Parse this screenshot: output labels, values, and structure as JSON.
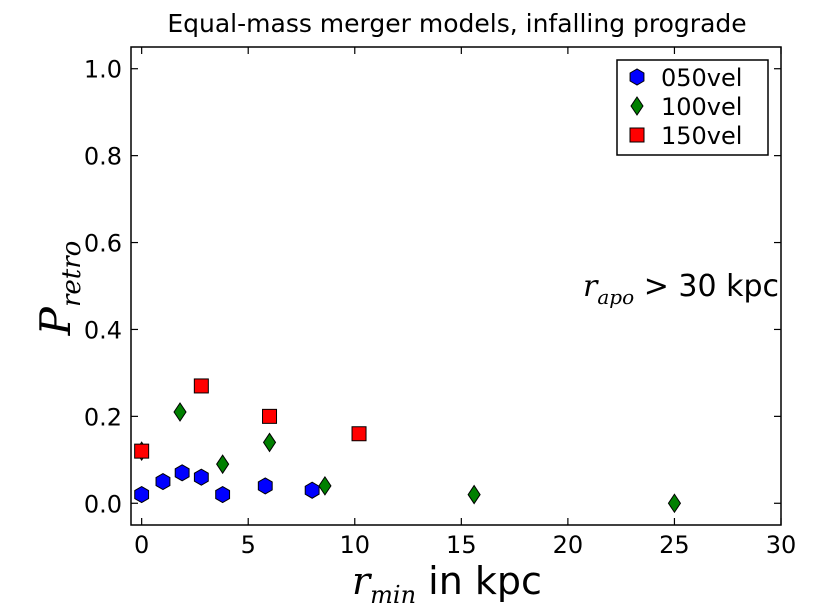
{
  "chart_data": {
    "type": "scatter",
    "title": "Equal-mass merger models, infalling prograde",
    "xlabel": {
      "var": "r",
      "sub": "min",
      "suffix": " in kpc"
    },
    "ylabel": {
      "var": "P",
      "sub": "retro"
    },
    "xlim": [
      -0.5,
      30
    ],
    "ylim": [
      -0.05,
      1.05
    ],
    "xticks": [
      0,
      5,
      10,
      15,
      20,
      25,
      30
    ],
    "xtick_labels": [
      "0",
      "5",
      "10",
      "15",
      "20",
      "25",
      "30"
    ],
    "yticks": [
      0.0,
      0.2,
      0.4,
      0.6,
      0.8,
      1.0
    ],
    "ytick_labels": [
      "0.0",
      "0.2",
      "0.4",
      "0.6",
      "0.8",
      "1.0"
    ],
    "grid": false,
    "legend_position": "top-right",
    "annotation": {
      "var": "r",
      "sub": "apo",
      "suffix": " > 30 kpc"
    },
    "series": [
      {
        "name": "050vel",
        "marker": "hexagon",
        "color": "#0000ff",
        "points": [
          [
            0,
            0.02
          ],
          [
            1,
            0.05
          ],
          [
            1.9,
            0.07
          ],
          [
            2.8,
            0.06
          ],
          [
            3.8,
            0.02
          ],
          [
            5.8,
            0.04
          ],
          [
            8.0,
            0.03
          ]
        ]
      },
      {
        "name": "100vel",
        "marker": "diamond",
        "color": "#008000",
        "points": [
          [
            0,
            0.12
          ],
          [
            1.8,
            0.21
          ],
          [
            3.8,
            0.09
          ],
          [
            6.0,
            0.14
          ],
          [
            8.6,
            0.04
          ],
          [
            15.6,
            0.02
          ],
          [
            25.0,
            0.0
          ]
        ]
      },
      {
        "name": "150vel",
        "marker": "square",
        "color": "#ff0000",
        "points": [
          [
            0,
            0.12
          ],
          [
            2.8,
            0.27
          ],
          [
            6.0,
            0.2
          ],
          [
            10.2,
            0.16
          ]
        ]
      }
    ]
  }
}
